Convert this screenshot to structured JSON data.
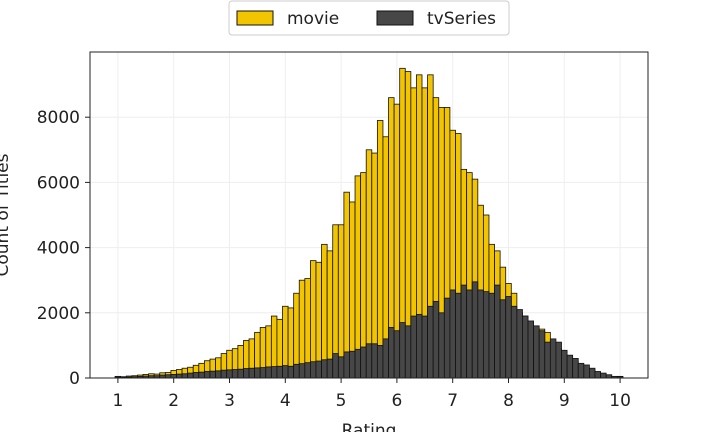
{
  "chart_data": {
    "type": "histogram",
    "x_label": "Rating",
    "y_label": "Count of Titles",
    "bins": [
      0.95,
      1.05,
      1.15,
      1.25,
      1.35,
      1.45,
      1.55,
      1.65,
      1.75,
      1.85,
      1.95,
      2.05,
      2.15,
      2.25,
      2.35,
      2.45,
      2.55,
      2.65,
      2.75,
      2.85,
      2.95,
      3.05,
      3.15,
      3.25,
      3.35,
      3.45,
      3.55,
      3.65,
      3.75,
      3.85,
      3.95,
      4.05,
      4.15,
      4.25,
      4.35,
      4.45,
      4.55,
      4.65,
      4.75,
      4.85,
      4.95,
      5.05,
      5.15,
      5.25,
      5.35,
      5.45,
      5.55,
      5.65,
      5.75,
      5.85,
      5.95,
      6.05,
      6.15,
      6.25,
      6.35,
      6.45,
      6.55,
      6.65,
      6.75,
      6.85,
      6.95,
      7.05,
      7.15,
      7.25,
      7.35,
      7.45,
      7.55,
      7.65,
      7.75,
      7.85,
      7.95,
      8.05,
      8.15,
      8.25,
      8.35,
      8.45,
      8.55,
      8.65,
      8.75,
      8.85,
      8.95,
      9.05,
      9.15,
      9.25,
      9.35,
      9.45,
      9.55,
      9.65,
      9.75,
      9.85,
      9.95,
      10.05
    ],
    "series": [
      {
        "name": "movie",
        "color": "#f2c500",
        "values": [
          50,
          40,
          60,
          70,
          90,
          110,
          130,
          120,
          160,
          170,
          230,
          260,
          300,
          330,
          390,
          450,
          530,
          580,
          620,
          750,
          850,
          900,
          1000,
          1150,
          1200,
          1400,
          1550,
          1600,
          1900,
          1800,
          2200,
          2150,
          2600,
          3000,
          3050,
          3600,
          3550,
          4100,
          3900,
          4700,
          4700,
          5700,
          5400,
          6200,
          6300,
          7000,
          6900,
          7900,
          7400,
          8600,
          8400,
          9500,
          9400,
          8900,
          9300,
          8900,
          9300,
          8600,
          8300,
          8300,
          7600,
          7500,
          6400,
          6300,
          6100,
          5300,
          5000,
          4100,
          3900,
          3400,
          2900,
          2600,
          2000,
          1900,
          1600,
          1300,
          1500,
          1400,
          1100,
          900,
          800,
          600,
          500,
          400,
          300,
          250,
          150,
          100,
          60,
          40,
          50
        ]
      },
      {
        "name": "tvSeries",
        "color": "#474747",
        "values": [
          30,
          20,
          30,
          40,
          50,
          60,
          70,
          70,
          90,
          100,
          110,
          120,
          130,
          150,
          170,
          180,
          200,
          210,
          220,
          240,
          250,
          260,
          270,
          290,
          300,
          310,
          320,
          340,
          350,
          360,
          380,
          360,
          420,
          440,
          470,
          500,
          520,
          560,
          580,
          750,
          650,
          800,
          820,
          880,
          950,
          1050,
          1050,
          1000,
          1200,
          1550,
          1450,
          1700,
          1600,
          1900,
          1950,
          1900,
          2200,
          2350,
          2000,
          2450,
          2700,
          2600,
          2850,
          2700,
          2950,
          2700,
          2650,
          2600,
          2850,
          2400,
          2500,
          2200,
          2100,
          1900,
          1750,
          1600,
          1450,
          1100,
          1200,
          1100,
          850,
          700,
          600,
          450,
          400,
          300,
          200,
          150,
          100,
          50,
          40
        ]
      }
    ],
    "xlim": [
      0.5,
      10.5
    ],
    "xticks": [
      1,
      2,
      3,
      4,
      5,
      6,
      7,
      8,
      9,
      10
    ],
    "ylim": [
      0,
      10000
    ],
    "yticks": [
      0,
      2000,
      4000,
      6000,
      8000
    ],
    "grid": true,
    "legend": "top"
  }
}
